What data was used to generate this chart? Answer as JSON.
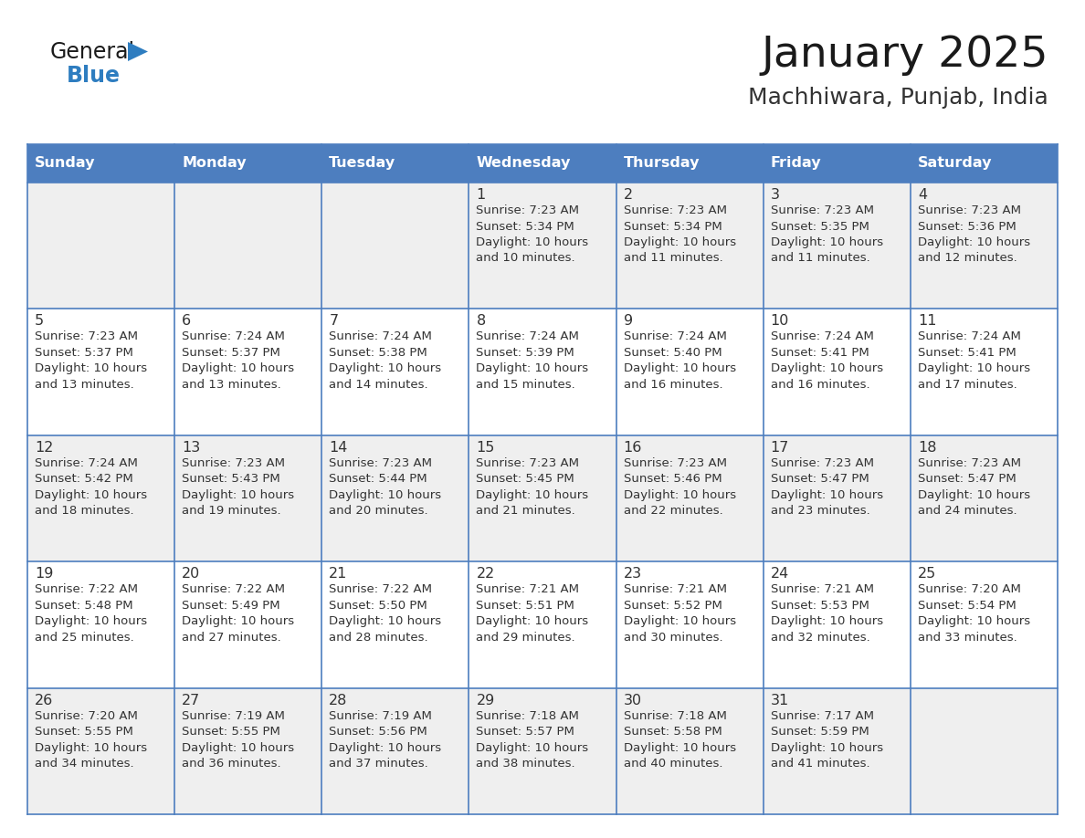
{
  "title": "January 2025",
  "subtitle": "Machhiwara, Punjab, India",
  "header_bg": "#4d7ebf",
  "header_text_color": "#FFFFFF",
  "weekdays": [
    "Sunday",
    "Monday",
    "Tuesday",
    "Wednesday",
    "Thursday",
    "Friday",
    "Saturday"
  ],
  "row_bg": [
    "#EFEFEF",
    "#FFFFFF",
    "#EFEFEF",
    "#FFFFFF",
    "#EFEFEF"
  ],
  "cell_text_color": "#333333",
  "grid_line_color": "#4d7ebf",
  "title_color": "#1a1a1a",
  "subtitle_color": "#333333",
  "logo_general_color": "#1a1a1a",
  "logo_blue_color": "#2E7DC0",
  "logo_triangle_color": "#2E7DC0",
  "days": [
    {
      "day": 0,
      "col": 0,
      "row": 0,
      "sunrise": "",
      "sunset": "",
      "daylight": ""
    },
    {
      "day": 0,
      "col": 1,
      "row": 0,
      "sunrise": "",
      "sunset": "",
      "daylight": ""
    },
    {
      "day": 0,
      "col": 2,
      "row": 0,
      "sunrise": "",
      "sunset": "",
      "daylight": ""
    },
    {
      "day": 1,
      "col": 3,
      "row": 0,
      "sunrise": "7:23 AM",
      "sunset": "5:34 PM",
      "daylight": "10 hours\nand 10 minutes."
    },
    {
      "day": 2,
      "col": 4,
      "row": 0,
      "sunrise": "7:23 AM",
      "sunset": "5:34 PM",
      "daylight": "10 hours\nand 11 minutes."
    },
    {
      "day": 3,
      "col": 5,
      "row": 0,
      "sunrise": "7:23 AM",
      "sunset": "5:35 PM",
      "daylight": "10 hours\nand 11 minutes."
    },
    {
      "day": 4,
      "col": 6,
      "row": 0,
      "sunrise": "7:23 AM",
      "sunset": "5:36 PM",
      "daylight": "10 hours\nand 12 minutes."
    },
    {
      "day": 5,
      "col": 0,
      "row": 1,
      "sunrise": "7:23 AM",
      "sunset": "5:37 PM",
      "daylight": "10 hours\nand 13 minutes."
    },
    {
      "day": 6,
      "col": 1,
      "row": 1,
      "sunrise": "7:24 AM",
      "sunset": "5:37 PM",
      "daylight": "10 hours\nand 13 minutes."
    },
    {
      "day": 7,
      "col": 2,
      "row": 1,
      "sunrise": "7:24 AM",
      "sunset": "5:38 PM",
      "daylight": "10 hours\nand 14 minutes."
    },
    {
      "day": 8,
      "col": 3,
      "row": 1,
      "sunrise": "7:24 AM",
      "sunset": "5:39 PM",
      "daylight": "10 hours\nand 15 minutes."
    },
    {
      "day": 9,
      "col": 4,
      "row": 1,
      "sunrise": "7:24 AM",
      "sunset": "5:40 PM",
      "daylight": "10 hours\nand 16 minutes."
    },
    {
      "day": 10,
      "col": 5,
      "row": 1,
      "sunrise": "7:24 AM",
      "sunset": "5:41 PM",
      "daylight": "10 hours\nand 16 minutes."
    },
    {
      "day": 11,
      "col": 6,
      "row": 1,
      "sunrise": "7:24 AM",
      "sunset": "5:41 PM",
      "daylight": "10 hours\nand 17 minutes."
    },
    {
      "day": 12,
      "col": 0,
      "row": 2,
      "sunrise": "7:24 AM",
      "sunset": "5:42 PM",
      "daylight": "10 hours\nand 18 minutes."
    },
    {
      "day": 13,
      "col": 1,
      "row": 2,
      "sunrise": "7:23 AM",
      "sunset": "5:43 PM",
      "daylight": "10 hours\nand 19 minutes."
    },
    {
      "day": 14,
      "col": 2,
      "row": 2,
      "sunrise": "7:23 AM",
      "sunset": "5:44 PM",
      "daylight": "10 hours\nand 20 minutes."
    },
    {
      "day": 15,
      "col": 3,
      "row": 2,
      "sunrise": "7:23 AM",
      "sunset": "5:45 PM",
      "daylight": "10 hours\nand 21 minutes."
    },
    {
      "day": 16,
      "col": 4,
      "row": 2,
      "sunrise": "7:23 AM",
      "sunset": "5:46 PM",
      "daylight": "10 hours\nand 22 minutes."
    },
    {
      "day": 17,
      "col": 5,
      "row": 2,
      "sunrise": "7:23 AM",
      "sunset": "5:47 PM",
      "daylight": "10 hours\nand 23 minutes."
    },
    {
      "day": 18,
      "col": 6,
      "row": 2,
      "sunrise": "7:23 AM",
      "sunset": "5:47 PM",
      "daylight": "10 hours\nand 24 minutes."
    },
    {
      "day": 19,
      "col": 0,
      "row": 3,
      "sunrise": "7:22 AM",
      "sunset": "5:48 PM",
      "daylight": "10 hours\nand 25 minutes."
    },
    {
      "day": 20,
      "col": 1,
      "row": 3,
      "sunrise": "7:22 AM",
      "sunset": "5:49 PM",
      "daylight": "10 hours\nand 27 minutes."
    },
    {
      "day": 21,
      "col": 2,
      "row": 3,
      "sunrise": "7:22 AM",
      "sunset": "5:50 PM",
      "daylight": "10 hours\nand 28 minutes."
    },
    {
      "day": 22,
      "col": 3,
      "row": 3,
      "sunrise": "7:21 AM",
      "sunset": "5:51 PM",
      "daylight": "10 hours\nand 29 minutes."
    },
    {
      "day": 23,
      "col": 4,
      "row": 3,
      "sunrise": "7:21 AM",
      "sunset": "5:52 PM",
      "daylight": "10 hours\nand 30 minutes."
    },
    {
      "day": 24,
      "col": 5,
      "row": 3,
      "sunrise": "7:21 AM",
      "sunset": "5:53 PM",
      "daylight": "10 hours\nand 32 minutes."
    },
    {
      "day": 25,
      "col": 6,
      "row": 3,
      "sunrise": "7:20 AM",
      "sunset": "5:54 PM",
      "daylight": "10 hours\nand 33 minutes."
    },
    {
      "day": 26,
      "col": 0,
      "row": 4,
      "sunrise": "7:20 AM",
      "sunset": "5:55 PM",
      "daylight": "10 hours\nand 34 minutes."
    },
    {
      "day": 27,
      "col": 1,
      "row": 4,
      "sunrise": "7:19 AM",
      "sunset": "5:55 PM",
      "daylight": "10 hours\nand 36 minutes."
    },
    {
      "day": 28,
      "col": 2,
      "row": 4,
      "sunrise": "7:19 AM",
      "sunset": "5:56 PM",
      "daylight": "10 hours\nand 37 minutes."
    },
    {
      "day": 29,
      "col": 3,
      "row": 4,
      "sunrise": "7:18 AM",
      "sunset": "5:57 PM",
      "daylight": "10 hours\nand 38 minutes."
    },
    {
      "day": 30,
      "col": 4,
      "row": 4,
      "sunrise": "7:18 AM",
      "sunset": "5:58 PM",
      "daylight": "10 hours\nand 40 minutes."
    },
    {
      "day": 31,
      "col": 5,
      "row": 4,
      "sunrise": "7:17 AM",
      "sunset": "5:59 PM",
      "daylight": "10 hours\nand 41 minutes."
    },
    {
      "day": 0,
      "col": 6,
      "row": 4,
      "sunrise": "",
      "sunset": "",
      "daylight": ""
    }
  ],
  "n_rows": 5,
  "n_cols": 7
}
